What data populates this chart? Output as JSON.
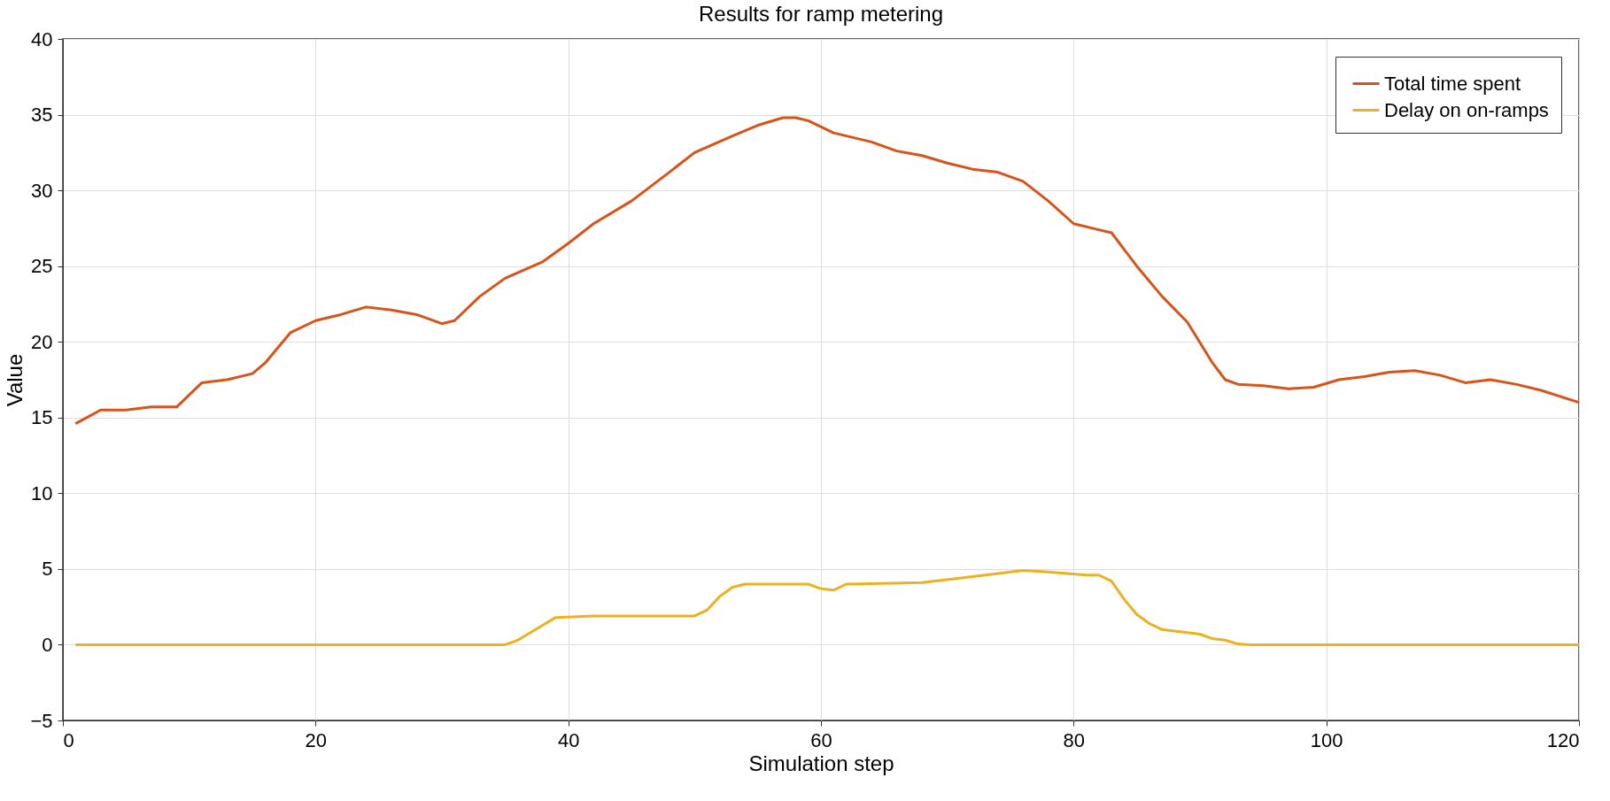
{
  "chart_data": {
    "type": "line",
    "title": "Results for ramp metering",
    "xlabel": "Simulation step",
    "ylabel": "Value",
    "xlim": [
      0,
      120
    ],
    "xticks": [
      0,
      20,
      40,
      60,
      80,
      100,
      120
    ],
    "ylim": [
      -5,
      40
    ],
    "yticks": [
      -5,
      0,
      5,
      10,
      15,
      20,
      25,
      30,
      35,
      40
    ],
    "grid": true,
    "legend": "top right",
    "line_style": "solid",
    "marker": "none",
    "series": [
      {
        "name": "Total time spent",
        "color": "#d95319",
        "x": [
          1,
          3,
          5,
          7,
          9,
          11,
          13,
          15,
          16,
          18,
          20,
          22,
          24,
          26,
          28,
          30,
          31,
          33,
          35,
          38,
          40,
          42,
          45,
          48,
          50,
          53,
          55,
          57,
          58,
          59,
          61,
          64,
          66,
          68,
          70,
          72,
          74,
          76,
          78,
          80,
          82,
          83,
          85,
          87,
          89,
          91,
          92,
          93,
          95,
          97,
          99,
          101,
          103,
          105,
          107,
          109,
          111,
          113,
          115,
          117,
          120
        ],
        "values": [
          14.6,
          15.5,
          15.5,
          15.7,
          15.7,
          17.3,
          17.5,
          17.9,
          18.6,
          20.6,
          21.4,
          21.8,
          22.3,
          22.1,
          21.8,
          21.2,
          21.4,
          23.0,
          24.2,
          25.3,
          26.5,
          27.8,
          29.3,
          31.2,
          32.5,
          33.6,
          34.3,
          34.8,
          34.8,
          34.6,
          33.8,
          33.2,
          32.6,
          32.3,
          31.8,
          31.4,
          31.2,
          30.6,
          29.3,
          27.8,
          27.4,
          27.2,
          25.0,
          23.0,
          21.3,
          18.6,
          17.5,
          17.2,
          17.1,
          16.9,
          17.0,
          17.5,
          17.7,
          18.0,
          18.1,
          17.8,
          17.3,
          17.5,
          17.2,
          16.8,
          16.0
        ]
      },
      {
        "name": "Delay on on-ramps",
        "color": "#edb120",
        "x": [
          1,
          35,
          36,
          38,
          39,
          42,
          50,
          51,
          52,
          53,
          54,
          59,
          60,
          61,
          62,
          68,
          72,
          76,
          78,
          81,
          82,
          83,
          84,
          85,
          86,
          87,
          88,
          90,
          91,
          92,
          93,
          94,
          120
        ],
        "values": [
          0,
          0,
          0.3,
          1.3,
          1.8,
          1.9,
          1.9,
          2.3,
          3.2,
          3.8,
          4.0,
          4.0,
          3.7,
          3.6,
          4.0,
          4.1,
          4.5,
          4.9,
          4.8,
          4.6,
          4.6,
          4.2,
          3.0,
          2.0,
          1.4,
          1.0,
          0.9,
          0.7,
          0.4,
          0.3,
          0.05,
          0,
          0
        ]
      }
    ]
  }
}
